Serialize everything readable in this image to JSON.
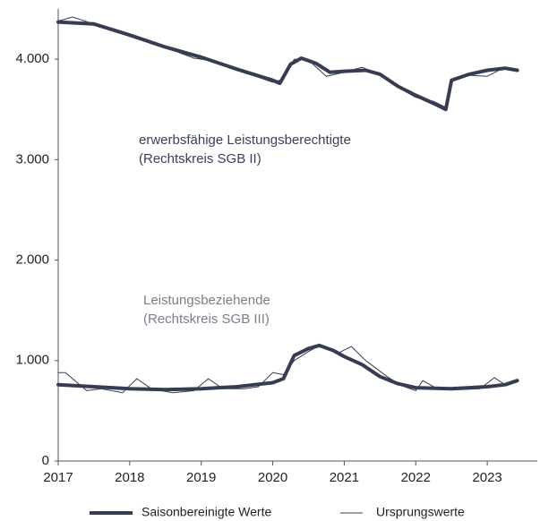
{
  "chart_data": {
    "type": "line",
    "xlim": [
      2017,
      2023.7
    ],
    "xticks": [
      2017,
      2018,
      2019,
      2020,
      2021,
      2022,
      2023
    ],
    "ylim": [
      0,
      4500
    ],
    "yticks": [
      0,
      {
        "value": 1000,
        "label": "1.000"
      },
      {
        "value": 2000,
        "label": "2.000"
      },
      {
        "value": 3000,
        "label": "3.000"
      },
      {
        "value": 4000,
        "label": "4.000"
      }
    ],
    "annotations": [
      [
        "erwerbsfähige Leistungsberechtigte",
        "(Rechtskreis SGB II)"
      ],
      [
        "Leistungsbeziehende",
        "(Rechtskreis SGB III)"
      ]
    ],
    "legend": "bottom",
    "series": [
      {
        "name": "Saisonbereinigte Werte",
        "color": "#363d52",
        "line_width": 4,
        "lines": [
          {
            "x": [
              2017.0,
              2017.5,
              2018.0,
              2018.5,
              2019.0,
              2019.5,
              2020.0,
              2020.1,
              2020.25,
              2020.4,
              2020.6,
              2020.8,
              2021.0,
              2021.3,
              2021.5,
              2021.75,
              2022.0,
              2022.25,
              2022.42,
              2022.5,
              2022.75,
              2023.0,
              2023.25,
              2023.42
            ],
            "values": [
              4370,
              4350,
              4240,
              4120,
              4020,
              3900,
              3790,
              3760,
              3950,
              4010,
              3960,
              3870,
              3880,
              3890,
              3850,
              3730,
              3640,
              3560,
              3500,
              3790,
              3850,
              3890,
              3910,
              3890
            ]
          },
          {
            "x": [
              2017.0,
              2017.5,
              2018.0,
              2018.5,
              2019.0,
              2019.5,
              2019.75,
              2020.0,
              2020.15,
              2020.3,
              2020.5,
              2020.65,
              2020.85,
              2021.0,
              2021.25,
              2021.5,
              2021.75,
              2022.0,
              2022.5,
              2023.0,
              2023.25,
              2023.42
            ],
            "values": [
              760,
              740,
              720,
              710,
              720,
              740,
              760,
              780,
              820,
              1050,
              1120,
              1150,
              1100,
              1040,
              960,
              840,
              770,
              730,
              720,
              740,
              760,
              800
            ]
          }
        ]
      },
      {
        "name": "Ursprungswerte",
        "color": "#363d52",
        "line_width": 1,
        "lines": [
          {
            "x": [
              2017.0,
              2017.2,
              2017.5,
              2017.8,
              2018.0,
              2018.3,
              2018.6,
              2018.9,
              2019.2,
              2019.5,
              2019.8,
              2020.0,
              2020.15,
              2020.3,
              2020.5,
              2020.75,
              2021.0,
              2021.25,
              2021.5,
              2021.75,
              2022.0,
              2022.25,
              2022.42,
              2022.5,
              2022.75,
              2023.0,
              2023.25,
              2023.42
            ],
            "values": [
              4380,
              4420,
              4350,
              4280,
              4240,
              4160,
              4090,
              4010,
              3980,
              3890,
              3820,
              3770,
              3800,
              4000,
              3990,
              3830,
              3870,
              3920,
              3840,
              3720,
              3620,
              3580,
              3520,
              3780,
              3840,
              3830,
              3920,
              3900
            ]
          },
          {
            "x": [
              2017.0,
              2017.1,
              2017.4,
              2017.6,
              2017.9,
              2018.1,
              2018.3,
              2018.6,
              2018.9,
              2019.1,
              2019.3,
              2019.6,
              2019.8,
              2020.0,
              2020.15,
              2020.3,
              2020.5,
              2020.65,
              2020.9,
              2021.1,
              2021.3,
              2021.6,
              2021.8,
              2022.0,
              2022.1,
              2022.3,
              2022.6,
              2022.9,
              2023.1,
              2023.25,
              2023.42
            ],
            "values": [
              880,
              880,
              700,
              720,
              680,
              820,
              720,
              680,
              700,
              820,
              720,
              720,
              740,
              880,
              860,
              1000,
              1090,
              1150,
              1070,
              1140,
              1000,
              840,
              750,
              700,
              800,
              720,
              710,
              720,
              830,
              760,
              800
            ]
          }
        ]
      }
    ]
  }
}
